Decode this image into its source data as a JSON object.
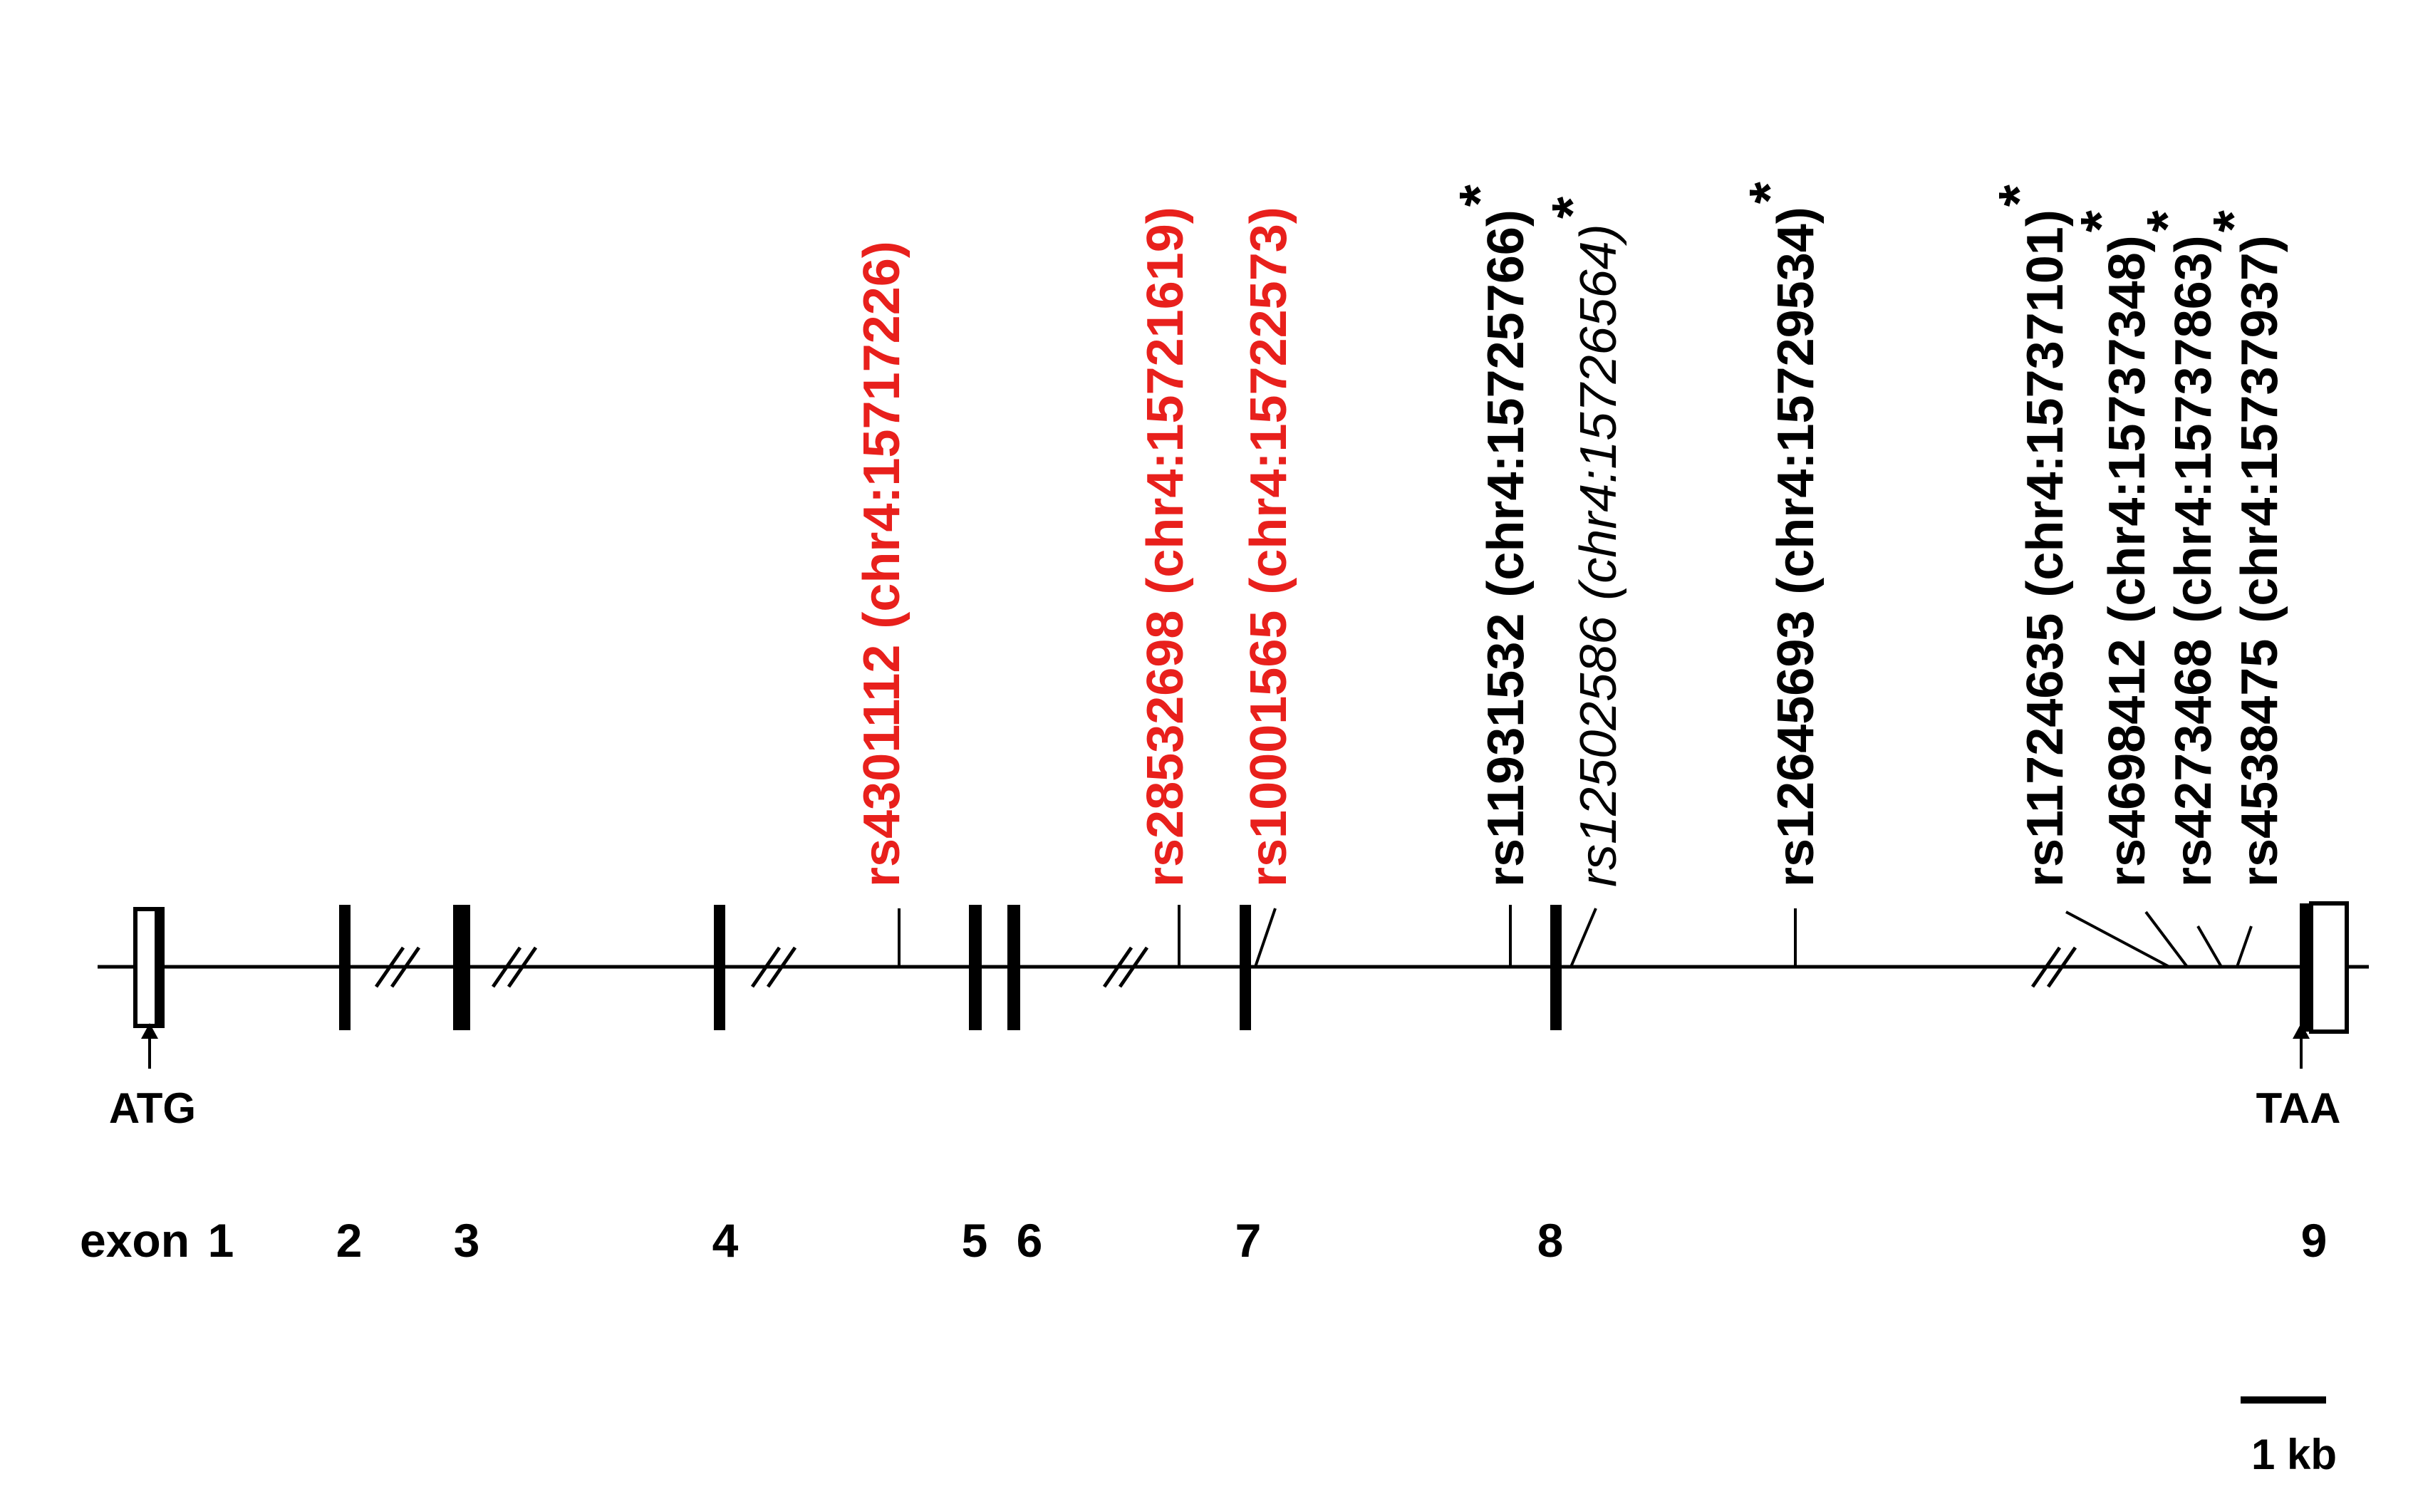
{
  "diagram": {
    "exon_prefix": "exon",
    "exon_numbers": [
      "1",
      "2",
      "3",
      "4",
      "5",
      "6",
      "7",
      "8",
      "9"
    ],
    "start_codon": "ATG",
    "stop_codon": "TAA",
    "scale_bar_label": "1 kb",
    "snps": [
      {
        "rsid": "rs4301112",
        "position": "(chr4:15717226)",
        "color": "#e8201c",
        "style": "bold",
        "asterisk": ""
      },
      {
        "rsid": "rs28532698",
        "position": "(chr4:15721619)",
        "color": "#e8201c",
        "style": "bold",
        "asterisk": ""
      },
      {
        "rsid": "rs10001565",
        "position": "(chr4:15722573)",
        "color": "#e8201c",
        "style": "bold",
        "asterisk": ""
      },
      {
        "rsid": "rs11931532",
        "position": "(chr4:15725766)",
        "color": "#000000",
        "style": "bold",
        "asterisk": "*"
      },
      {
        "rsid": "rs12502586",
        "position": "(chr4:15726564)",
        "color": "#000000",
        "style": "italic",
        "asterisk": "*"
      },
      {
        "rsid": "rs12645693",
        "position": "(chr4:15729534)",
        "color": "#000000",
        "style": "bold",
        "asterisk": "*"
      },
      {
        "rsid": "rs11724635",
        "position": "(chr4:15737101)",
        "color": "#000000",
        "style": "bold",
        "asterisk": "*"
      },
      {
        "rsid": "rs4698412",
        "position": "(chr4:15737348)",
        "color": "#000000",
        "style": "bold",
        "asterisk": "*"
      },
      {
        "rsid": "rs4273468",
        "position": "(chr4:15737863)",
        "color": "#000000",
        "style": "bold",
        "asterisk": "*"
      },
      {
        "rsid": "rs4538475",
        "position": "(chr4:15737937)",
        "color": "#000000",
        "style": "bold",
        "asterisk": "*"
      }
    ]
  }
}
